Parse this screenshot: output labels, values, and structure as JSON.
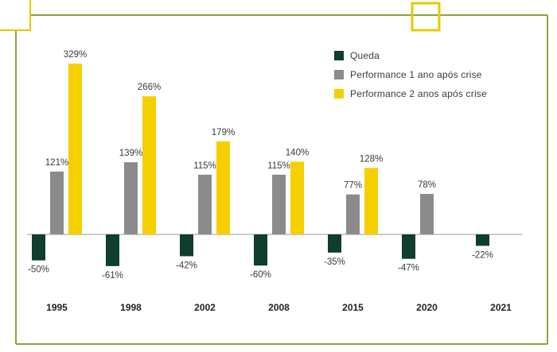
{
  "colors": {
    "queda": "#0f3d2e",
    "perf1": "#8b8b8b",
    "perf2": "#f5cf00",
    "frame": "#8aa53a",
    "accent": "#e9c800",
    "axis": "#9a9a9a",
    "text": "#3a3a3a"
  },
  "chart_data": {
    "type": "bar",
    "title": "",
    "xlabel": "",
    "ylabel": "",
    "categories": [
      "1995",
      "1998",
      "2002",
      "2008",
      "2015",
      "2020",
      "2021"
    ],
    "series": [
      {
        "name": "Queda",
        "values": [
          -50,
          -61,
          -42,
          -60,
          -35,
          -47,
          -22
        ],
        "labels": [
          "-50%",
          "-61%",
          "-42%",
          "-60%",
          "-35%",
          "-47%",
          "-22%"
        ]
      },
      {
        "name": "Performance 1 ano após crise",
        "values": [
          121,
          139,
          115,
          115,
          77,
          78,
          null
        ],
        "labels": [
          "121%",
          "139%",
          "115%",
          "115%",
          "77%",
          "78%",
          ""
        ]
      },
      {
        "name": "Performance 2 anos após crise",
        "values": [
          329,
          266,
          179,
          140,
          128,
          null,
          null
        ],
        "labels": [
          "329%",
          "266%",
          "179%",
          "140%",
          "128%",
          "",
          ""
        ]
      }
    ],
    "ylim": [
      -70,
      340
    ],
    "grid": false,
    "legend_position": "top-right"
  },
  "legend": [
    {
      "label": "Queda",
      "color_key": "queda"
    },
    {
      "label": "Performance 1 ano após crise",
      "color_key": "perf1"
    },
    {
      "label": "Performance 2 anos após crise",
      "color_key": "perf2"
    }
  ]
}
